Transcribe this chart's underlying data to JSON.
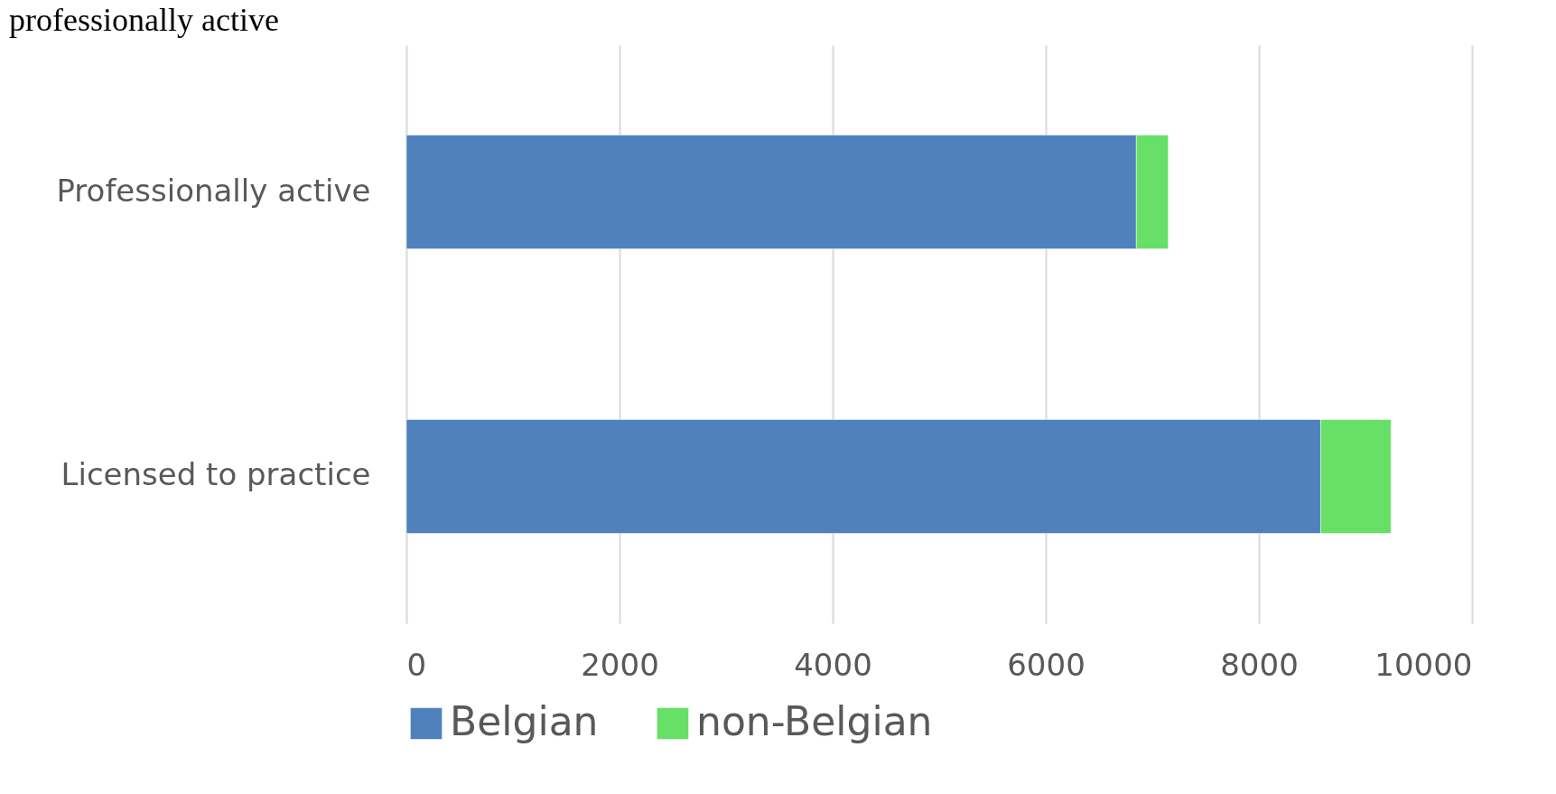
{
  "chart_data": {
    "type": "bar",
    "orientation": "horizontal",
    "stacked": true,
    "title": "professionally active",
    "categories": [
      "Professionally active",
      "Licensed to practice"
    ],
    "series": [
      {
        "name": "Belgian",
        "color": "#4f81bd",
        "values": [
          6850,
          8580
        ]
      },
      {
        "name": "non-Belgian",
        "color": "#66e066",
        "values": [
          300,
          660
        ]
      }
    ],
    "xlim": [
      0,
      10000
    ],
    "xticks": [
      0,
      2000,
      4000,
      6000,
      8000,
      10000
    ],
    "grid": "x",
    "legend": "bottom"
  }
}
